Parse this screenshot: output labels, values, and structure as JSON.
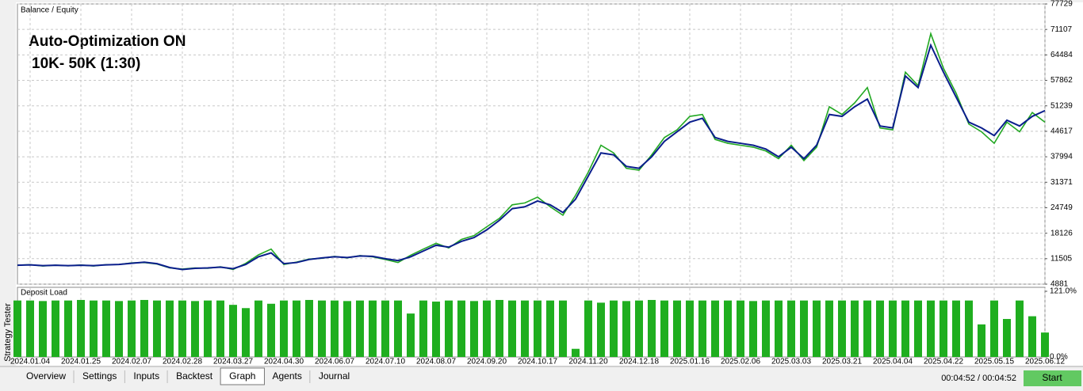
{
  "chart_data": [
    {
      "type": "line",
      "annotations": [
        "Auto-Optimization ON",
        "10K- 50K (1:30)"
      ],
      "legend_separator": "/",
      "categories": [
        null,
        "2024.01.04",
        null,
        null,
        null,
        "2024.01.25",
        null,
        null,
        null,
        "2024.02.07",
        null,
        null,
        null,
        "2024.02.28",
        null,
        null,
        null,
        "2024.03.27",
        null,
        null,
        null,
        "2024.04.30",
        null,
        null,
        null,
        "2024.06.07",
        null,
        null,
        null,
        "2024.07.10",
        null,
        null,
        null,
        "2024.08.07",
        null,
        null,
        null,
        "2024.09.20",
        null,
        null,
        null,
        "2024.10.17",
        null,
        null,
        null,
        "2024.11.20",
        null,
        null,
        null,
        "2024.12.18",
        null,
        null,
        null,
        "2025.01.16",
        null,
        null,
        null,
        "2025.02.06",
        null,
        null,
        null,
        "2025.03.03",
        null,
        null,
        null,
        "2025.03.21",
        null,
        null,
        null,
        "2025.04.04",
        null,
        null,
        null,
        "2025.04.22",
        null,
        null,
        null,
        "2025.05.15",
        null,
        null,
        null,
        "2025.06.12"
      ],
      "series": [
        {
          "name": "Balance",
          "color": "#0a1e8c",
          "values": [
            9800,
            9900,
            9700,
            9800,
            9700,
            9800,
            9700,
            9900,
            10000,
            10300,
            10600,
            10200,
            9200,
            8700,
            9000,
            9100,
            9300,
            8900,
            10000,
            12000,
            13000,
            10200,
            10500,
            11300,
            11700,
            12000,
            11800,
            12200,
            12100,
            11500,
            11000,
            12000,
            13500,
            15000,
            14500,
            16000,
            17000,
            19000,
            21500,
            24500,
            25000,
            26500,
            25500,
            23500,
            27000,
            33000,
            39000,
            38500,
            35500,
            35000,
            38000,
            42000,
            44500,
            47000,
            48000,
            43000,
            42000,
            41500,
            41000,
            40000,
            38000,
            40500,
            37500,
            41000,
            49000,
            48500,
            51000,
            53000,
            46000,
            45500,
            59000,
            56000,
            67000,
            60000,
            53500,
            47000,
            45500,
            43500,
            47500,
            46000,
            48500,
            50000
          ]
        },
        {
          "name": "Equity",
          "color": "#22a822",
          "values": [
            9800,
            9950,
            9600,
            9800,
            9650,
            9850,
            9600,
            9950,
            10000,
            10400,
            10500,
            10100,
            9100,
            8800,
            9100,
            9000,
            9400,
            8700,
            10300,
            12500,
            14000,
            10000,
            10600,
            11400,
            11600,
            12100,
            11700,
            12300,
            12000,
            11300,
            10500,
            12400,
            14000,
            15500,
            14300,
            16500,
            17500,
            19800,
            22000,
            25500,
            26000,
            27500,
            25000,
            22800,
            28000,
            34000,
            41000,
            39000,
            35000,
            34500,
            38500,
            43000,
            45000,
            48500,
            49000,
            42500,
            41500,
            41000,
            40500,
            39500,
            37500,
            41000,
            37000,
            40500,
            51000,
            49000,
            52000,
            56000,
            45500,
            45000,
            60000,
            56500,
            70000,
            61000,
            54500,
            46500,
            44500,
            41500,
            47000,
            44500,
            49500,
            47000
          ]
        }
      ],
      "ylim": [
        4881,
        77729
      ],
      "yticks": [
        4881,
        11505,
        18126,
        24749,
        31371,
        37994,
        44617,
        51239,
        57862,
        64484,
        71107,
        77729
      ],
      "grid": true
    },
    {
      "type": "bar",
      "title": "Deposit Load",
      "color": "#1fae1f",
      "values": [
        104,
        104,
        103,
        104,
        104,
        105,
        104,
        104,
        103,
        104,
        105,
        104,
        104,
        104,
        103,
        104,
        104,
        96,
        90,
        104,
        98,
        104,
        104,
        105,
        104,
        104,
        103,
        104,
        104,
        104,
        104,
        80,
        104,
        102,
        104,
        104,
        103,
        104,
        105,
        104,
        104,
        104,
        104,
        104,
        15,
        104,
        100,
        104,
        103,
        104,
        105,
        104,
        104,
        104,
        104,
        104,
        104,
        104,
        103,
        104,
        104,
        104,
        104,
        104,
        104,
        104,
        104,
        104,
        104,
        104,
        104,
        104,
        104,
        104,
        104,
        104,
        60,
        104,
        70,
        104,
        75,
        45
      ],
      "ylim": [
        0,
        121
      ],
      "yticks": [
        {
          "value": 0,
          "label": "0.0%"
        },
        {
          "value": 121,
          "label": "121.0%"
        }
      ],
      "grid": true
    }
  ],
  "side_label": "Strategy Tester",
  "tabs": [
    "Overview",
    "Settings",
    "Inputs",
    "Backtest",
    "Graph",
    "Agents",
    "Journal"
  ],
  "active_tab": 4,
  "time": "00:04:52 / 00:04:52",
  "button": "Start"
}
